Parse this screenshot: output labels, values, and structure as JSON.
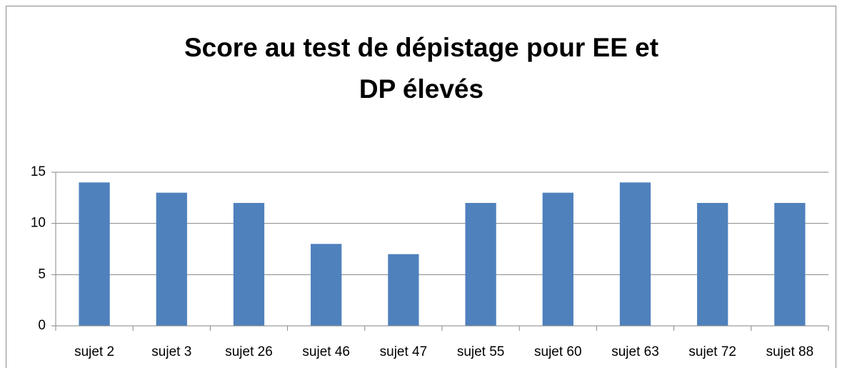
{
  "chart_data": {
    "type": "bar",
    "title": "Score au test de dépistage pour EE et DP élevés",
    "categories": [
      "sujet 2",
      "sujet 3",
      "sujet 26",
      "sujet 46",
      "sujet 47",
      "sujet 55",
      "sujet 60",
      "sujet 63",
      "sujet 72",
      "sujet 88"
    ],
    "values": [
      14,
      13,
      12,
      8,
      7,
      12,
      13,
      14,
      12,
      12
    ],
    "color": "#4f81bd",
    "ylim": [
      0,
      15
    ],
    "yticks": [
      0,
      5,
      10,
      15
    ],
    "grid": true
  }
}
